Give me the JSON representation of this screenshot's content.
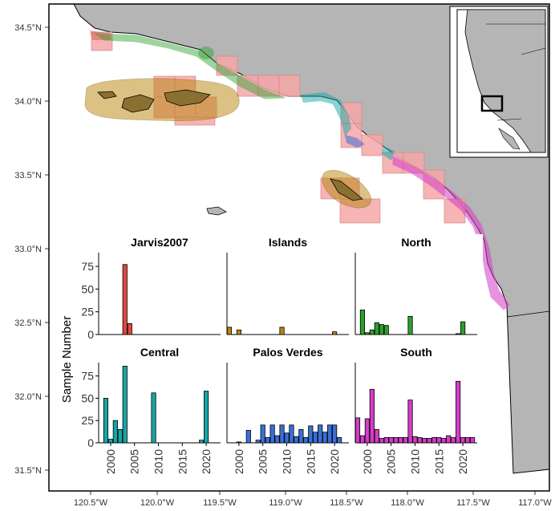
{
  "map": {
    "lat_ticks": [
      "34.5°N",
      "34.0°N",
      "33.5°N",
      "33.0°N",
      "32.5°N",
      "32.0°N",
      "31.5°N"
    ],
    "lon_ticks": [
      "120.5°W",
      "120.0°W",
      "119.5°W",
      "119.0°W",
      "118.5°W",
      "118.0°W",
      "117.5°W",
      "117.0°W"
    ],
    "lon_range": [
      -120.72,
      -116.86
    ],
    "lat_range": [
      31.4,
      34.66
    ],
    "colors": {
      "land": "#b5b5b5",
      "grid_cell": "#f4a7a7",
      "jarvis2007": "#e0463f",
      "islands": "#b8860b",
      "north": "#2ca02c",
      "central": "#17a5a5",
      "palos_verdes": "#3a6fd8",
      "south": "#d63cc7"
    }
  },
  "chart_data": {
    "type": "bar",
    "ylabel": "Sample Number",
    "x_ticks": [
      2000,
      2005,
      2010,
      2015,
      2020
    ],
    "xlim": [
      1997.5,
      2023
    ],
    "ylim": [
      0,
      90
    ],
    "y_ticks": [
      0,
      25,
      50,
      75
    ],
    "panels": [
      {
        "title": "Jarvis2007",
        "color": "#e0463f",
        "x": [
          2003,
          2004
        ],
        "values": [
          77,
          12
        ]
      },
      {
        "title": "Islands",
        "color": "#b8860b",
        "x": [
          1998,
          2000,
          2009,
          2020
        ],
        "values": [
          8,
          5,
          8,
          3
        ]
      },
      {
        "title": "North",
        "color": "#2ca02c",
        "x": [
          1999,
          2000,
          2001,
          2002,
          2003,
          2004,
          2009,
          2019,
          2020
        ],
        "values": [
          27,
          2,
          5,
          13,
          11,
          10,
          20,
          1,
          14
        ]
      },
      {
        "title": "Central",
        "color": "#17a5a5",
        "x": [
          1999,
          2000,
          2001,
          2002,
          2003,
          2009,
          2019,
          2020
        ],
        "values": [
          50,
          4,
          25,
          15,
          86,
          56,
          3,
          58
        ]
      },
      {
        "title": "Palos Verdes",
        "color": "#3a6fd8",
        "x": [
          2000,
          2002,
          2004,
          2005,
          2006,
          2007,
          2008,
          2009,
          2010,
          2011,
          2012,
          2013,
          2014,
          2015,
          2016,
          2017,
          2018,
          2019,
          2020,
          2021
        ],
        "values": [
          1,
          14,
          3,
          20,
          6,
          20,
          8,
          20,
          11,
          20,
          7,
          15,
          6,
          19,
          12,
          20,
          12,
          20,
          20,
          6
        ]
      },
      {
        "title": "South",
        "color": "#d63cc7",
        "x": [
          1998,
          1999,
          2000,
          2001,
          2002,
          2003,
          2004,
          2005,
          2006,
          2007,
          2008,
          2009,
          2010,
          2011,
          2012,
          2013,
          2014,
          2015,
          2016,
          2017,
          2018,
          2019,
          2020,
          2021,
          2022
        ],
        "values": [
          28,
          8,
          27,
          60,
          15,
          5,
          6,
          6,
          6,
          6,
          6,
          48,
          7,
          6,
          5,
          5,
          6,
          6,
          5,
          8,
          6,
          69,
          6,
          6,
          6
        ]
      }
    ]
  }
}
